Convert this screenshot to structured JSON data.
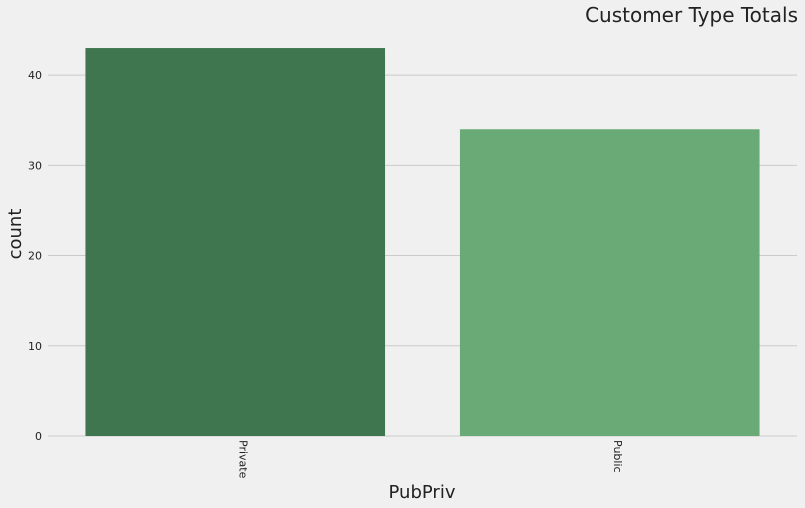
{
  "chart_data": {
    "type": "bar",
    "title": "Customer Type Totals",
    "xlabel": "PubPriv",
    "ylabel": "count",
    "categories": [
      "Private",
      "Public"
    ],
    "values": [
      43,
      34
    ],
    "colors": [
      "#3f7650",
      "#69aa76"
    ],
    "ylim": [
      0,
      45
    ],
    "yticks": [
      "0",
      "10",
      "20",
      "30",
      "40"
    ],
    "grid": true,
    "background": "#f0f0f0",
    "grid_color": "#cbcbcb"
  }
}
